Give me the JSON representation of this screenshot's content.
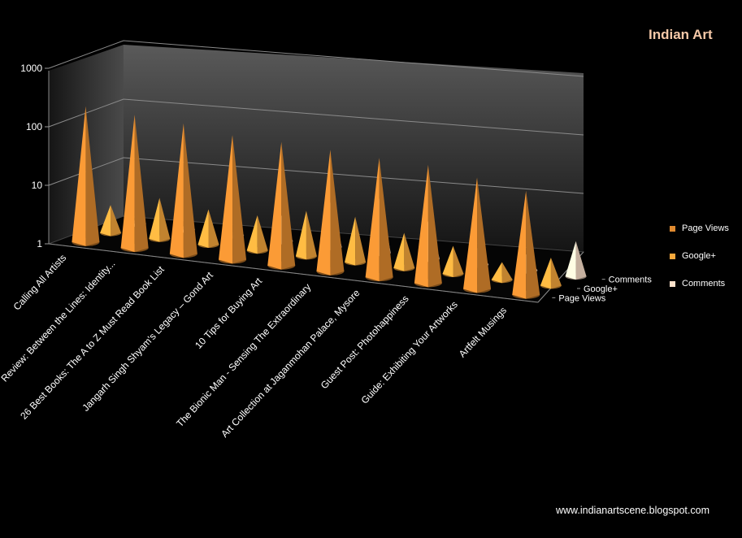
{
  "chart_data": {
    "type": "bar",
    "subtype": "3d-cone",
    "title": "Indian Art",
    "y_scale": "log",
    "ylim": [
      1,
      1000
    ],
    "y_ticks": [
      "1",
      "10",
      "100",
      "1000"
    ],
    "categories": [
      "Calling All Artists",
      "Review: Between the Lines: Identity...",
      "26 Best Books: The A to Z Must Read Book List",
      "Jangarh Singh Shyam's Legacy – Gond Art",
      "10 Tips for Buying Art",
      "The Bionic Man - Sensing The Extraordinary",
      "Art Collection at Jaganmohan Palace, Mysore",
      "Guest Post: Photohappiness",
      "Guide: Exhibiting Your Artworks",
      "Artfelt Musings"
    ],
    "depth_labels": [
      "Comments",
      "Google+",
      "Page Views"
    ],
    "series": [
      {
        "name": "Page Views",
        "color": "#e08a30",
        "values": [
          210,
          190,
          170,
          135,
          130,
          120,
          110,
          105,
          80,
          60
        ]
      },
      {
        "name": "Google+",
        "color": "#f7a83c",
        "values": [
          3,
          5,
          4,
          4,
          6,
          6,
          4,
          3,
          2,
          3
        ]
      },
      {
        "name": "Comments",
        "color": "#fde2cc",
        "values": [
          1,
          1,
          1,
          3,
          7,
          10,
          5,
          2,
          2,
          4
        ]
      }
    ],
    "legend": [
      "Page Views",
      "Google+",
      "Comments"
    ],
    "legend_position": "right"
  },
  "footer": {
    "site": "www.indianartscene.blogspot.com"
  }
}
